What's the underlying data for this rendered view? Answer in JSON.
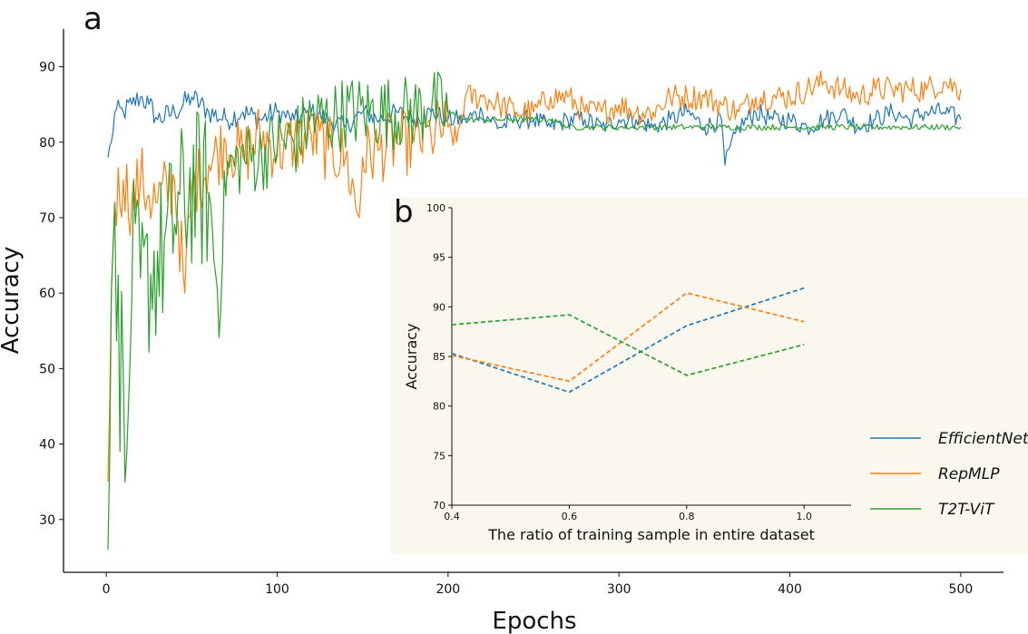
{
  "chart_data": [
    {
      "panel": "a",
      "type": "line",
      "xlabel": "Epochs",
      "ylabel": "Accuracy",
      "xlim": [
        -25,
        525
      ],
      "ylim": [
        23,
        95
      ],
      "xticks": [
        0,
        100,
        200,
        300,
        400,
        500
      ],
      "yticks": [
        30,
        40,
        50,
        60,
        70,
        80,
        90
      ],
      "grid": false,
      "series": [
        {
          "name": "EfficientNet",
          "color": "#1f77b4",
          "x": [
            1,
            3,
            5,
            10,
            15,
            20,
            25,
            30,
            40,
            50,
            60,
            70,
            80,
            90,
            100,
            110,
            120,
            130,
            140,
            150,
            160,
            170,
            180,
            190,
            200,
            210,
            220,
            230,
            240,
            250,
            260,
            270,
            280,
            290,
            300,
            310,
            320,
            330,
            340,
            350,
            360,
            362,
            370,
            380,
            390,
            400,
            410,
            420,
            430,
            440,
            450,
            460,
            470,
            480,
            490,
            500
          ],
          "y": [
            78,
            80,
            84,
            84,
            85,
            86,
            85,
            83,
            84,
            86,
            84,
            83,
            84,
            83,
            84,
            83,
            84,
            83,
            82,
            84,
            83,
            84,
            83,
            84,
            83,
            83,
            84,
            82,
            83,
            83,
            82,
            83,
            83,
            82,
            83,
            83,
            82,
            83,
            84,
            82,
            83,
            77,
            82,
            84,
            83,
            83,
            82,
            83,
            84,
            82,
            83,
            84,
            83,
            84,
            84,
            83
          ]
        },
        {
          "name": "RepMLP",
          "color": "#ff7f0e",
          "x": [
            1,
            3,
            5,
            10,
            15,
            20,
            25,
            30,
            40,
            46,
            50,
            60,
            70,
            80,
            90,
            100,
            110,
            120,
            130,
            140,
            148,
            150,
            160,
            170,
            180,
            190,
            200,
            205,
            210,
            220,
            230,
            240,
            250,
            260,
            270,
            280,
            290,
            300,
            310,
            320,
            330,
            340,
            350,
            360,
            370,
            380,
            390,
            400,
            410,
            420,
            430,
            440,
            450,
            460,
            470,
            480,
            490,
            500
          ],
          "y": [
            35,
            60,
            72,
            75,
            72,
            75,
            73,
            72,
            75,
            60,
            74,
            77,
            80,
            78,
            81,
            79,
            80,
            81,
            79,
            78,
            70,
            78,
            79,
            80,
            80,
            81,
            82,
            80,
            86,
            86,
            85,
            84,
            84,
            86,
            86,
            84,
            84,
            85,
            84,
            84,
            86,
            86,
            86,
            85,
            84,
            86,
            86,
            86,
            87,
            88,
            87,
            86,
            87,
            87,
            87,
            87,
            88,
            87
          ]
        },
        {
          "name": "T2T-ViT",
          "color": "#2ca02c",
          "x": [
            1,
            3,
            5,
            8,
            10,
            12,
            15,
            20,
            25,
            30,
            35,
            40,
            45,
            50,
            60,
            66,
            70,
            80,
            90,
            100,
            110,
            120,
            130,
            140,
            150,
            160,
            170,
            180,
            190,
            200,
            210,
            220,
            230,
            240,
            250,
            260,
            270,
            280,
            290,
            300,
            320,
            340,
            360,
            380,
            400,
            420,
            440,
            460,
            480,
            500
          ],
          "y": [
            26,
            60,
            72,
            45,
            60,
            30,
            65,
            60,
            62,
            64,
            66,
            70,
            72,
            74,
            73,
            58,
            76,
            78,
            78,
            80,
            80,
            83,
            83,
            84,
            84,
            84,
            84,
            84,
            85,
            84,
            83,
            83,
            83,
            83,
            83,
            83,
            82,
            82,
            82,
            82,
            82,
            82,
            82,
            82,
            82,
            82,
            82,
            82,
            82,
            82
          ]
        }
      ]
    },
    {
      "panel": "b",
      "type": "line",
      "xlabel": "The ratio of training sample in entire dataset",
      "ylabel": "Accuracy",
      "xlim": [
        0.4,
        1.08
      ],
      "ylim": [
        70,
        100
      ],
      "xticks": [
        "0.4",
        "0.6",
        "0.8",
        "1.0"
      ],
      "yticks": [
        "70",
        "75",
        "80",
        "85",
        "90",
        "95",
        "100"
      ],
      "background": "#faf8ee",
      "line_style": "dashed",
      "series": [
        {
          "name": "EfficientNet",
          "color": "#1f77b4",
          "x": [
            0.4,
            0.6,
            0.8,
            1.0
          ],
          "y": [
            85.3,
            81.4,
            88.1,
            91.9
          ]
        },
        {
          "name": "RepMLP",
          "color": "#ff7f0e",
          "x": [
            0.4,
            0.6,
            0.8,
            1.0
          ],
          "y": [
            85.1,
            82.5,
            91.4,
            88.5
          ]
        },
        {
          "name": "T2T-ViT",
          "color": "#2ca02c",
          "x": [
            0.4,
            0.6,
            0.8,
            1.0
          ],
          "y": [
            88.2,
            89.2,
            83.1,
            86.2
          ]
        }
      ]
    }
  ],
  "legend": {
    "placement": "right",
    "entries": [
      {
        "name": "EfficientNet",
        "color": "#1f77b4"
      },
      {
        "name": "RepMLP",
        "color": "#ff7f0e"
      },
      {
        "name": "T2T-ViT",
        "color": "#2ca02c"
      }
    ]
  }
}
